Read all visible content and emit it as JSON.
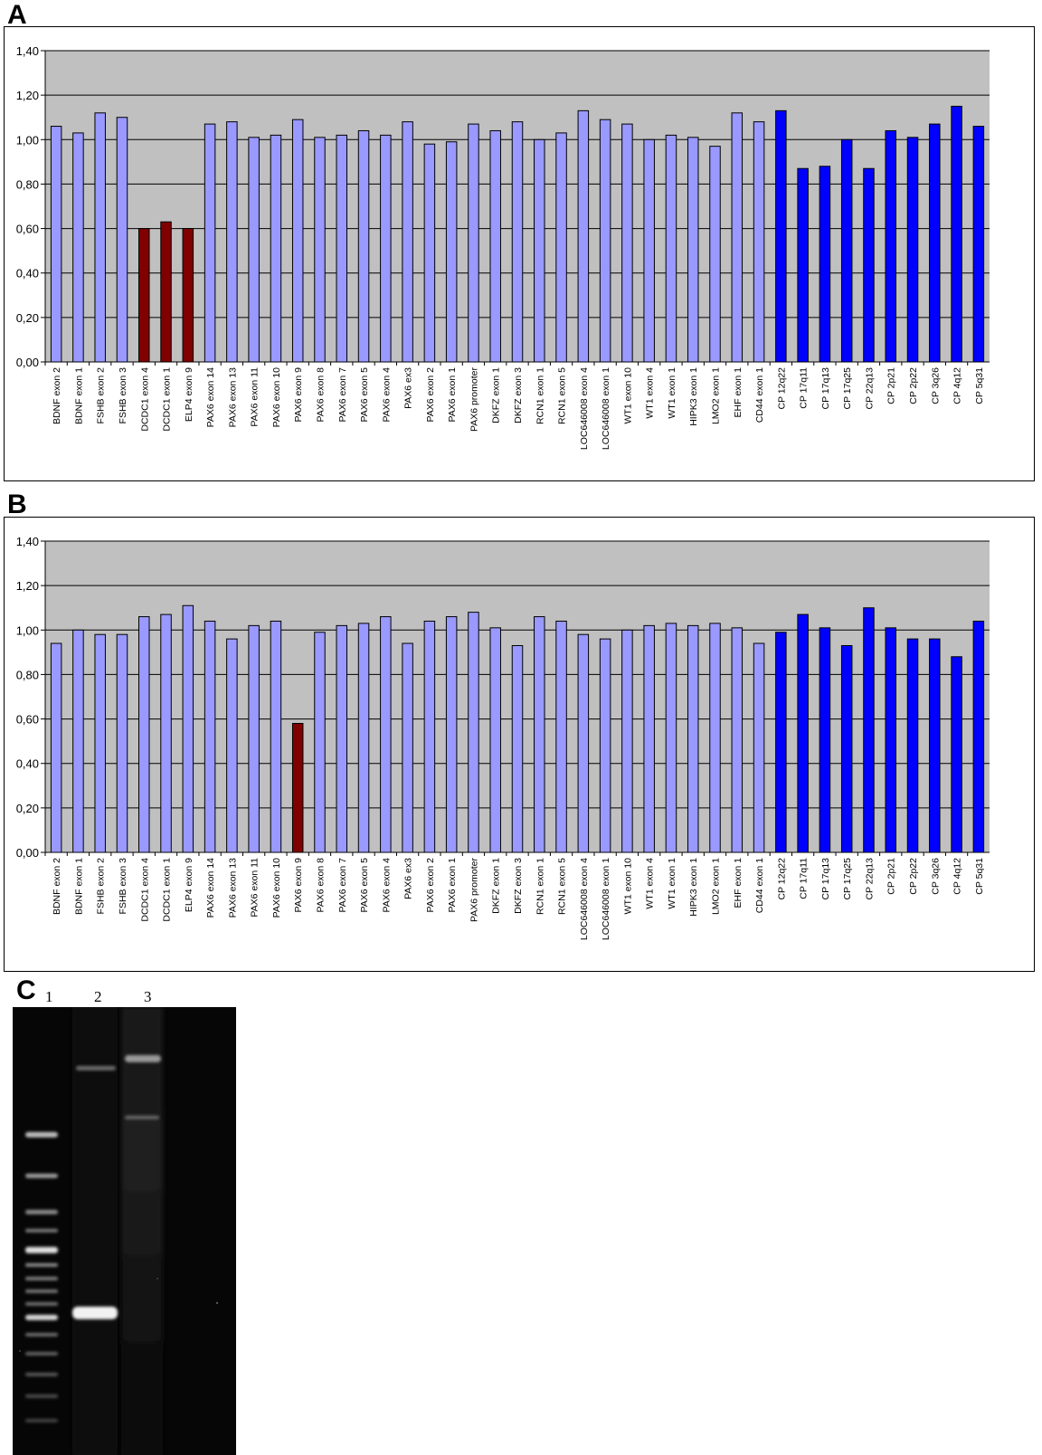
{
  "panels": {
    "a_label": "A",
    "b_label": "B",
    "c_label": "C"
  },
  "gel": {
    "lane_labels": [
      "1",
      "2",
      "3"
    ]
  },
  "colors": {
    "plot_background": "#c0c0c0",
    "normal_bar": "#9999ff",
    "deleted_bar": "#800000",
    "control_bar": "#0000ff"
  },
  "chart_data": [
    {
      "type": "bar",
      "panel": "A",
      "ylim": [
        0,
        1.4
      ],
      "y_ticks": [
        "0,00",
        "0,20",
        "0,40",
        "0,60",
        "0,80",
        "1,00",
        "1,20",
        "1,40"
      ],
      "grid": true,
      "legend": "none",
      "categories": [
        "BDNF exon 2",
        "BDNF exon 1",
        "FSHB exon 2",
        "FSHB exon 3",
        "DCDC1 exon 4",
        "DCDC1 exon 1",
        "ELP4 exon 9",
        "PAX6 exon 14",
        "PAX6 exon 13",
        "PAX6 exon 11",
        "PAX6 exon 10",
        "PAX6 exon 9",
        "PAX6 exon 8",
        "PAX6 exon 7",
        "PAX6 exon 5",
        "PAX6 exon 4",
        "PAX6 ex3",
        "PAX6 exon 2",
        "PAX6 exon 1",
        "PAX6 promoter",
        "DKFZ exon 1",
        "DKFZ exon 3",
        "RCN1 exon 1",
        "RCN1 exon 5",
        "LOC646008 exon 4",
        "LOC646008 exon 1",
        "WT1 exon 10",
        "WT1 exon 4",
        "WT1 exon 1",
        "HIPK3 exon 1",
        "LMO2 exon 1",
        "EHF exon 1",
        "CD44 exon 1",
        "CP 12q22",
        "CP 17q11",
        "CP 17q13",
        "CP 17q25",
        "CP 22q13",
        "CP 2p21",
        "CP 2p22",
        "CP 3q26",
        "CP 4q12",
        "CP 5q31"
      ],
      "values": [
        1.06,
        1.03,
        1.12,
        1.1,
        0.6,
        0.63,
        0.6,
        1.07,
        1.08,
        1.01,
        1.02,
        1.09,
        1.01,
        1.02,
        1.04,
        1.02,
        1.08,
        0.98,
        0.99,
        1.07,
        1.04,
        1.08,
        1.0,
        1.03,
        1.13,
        1.09,
        1.07,
        1.0,
        1.02,
        1.01,
        0.97,
        1.12,
        1.08,
        1.13,
        0.87,
        0.88,
        1.0,
        0.87,
        1.04,
        1.01,
        1.07,
        1.15,
        1.06
      ],
      "bar_groups": [
        "normal",
        "normal",
        "normal",
        "normal",
        "deleted",
        "deleted",
        "deleted",
        "normal",
        "normal",
        "normal",
        "normal",
        "normal",
        "normal",
        "normal",
        "normal",
        "normal",
        "normal",
        "normal",
        "normal",
        "normal",
        "normal",
        "normal",
        "normal",
        "normal",
        "normal",
        "normal",
        "normal",
        "normal",
        "normal",
        "normal",
        "normal",
        "normal",
        "normal",
        "control",
        "control",
        "control",
        "control",
        "control",
        "control",
        "control",
        "control",
        "control",
        "control"
      ]
    },
    {
      "type": "bar",
      "panel": "B",
      "ylim": [
        0,
        1.4
      ],
      "y_ticks": [
        "0,00",
        "0,20",
        "0,40",
        "0,60",
        "0,80",
        "1,00",
        "1,20",
        "1,40"
      ],
      "grid": true,
      "legend": "none",
      "categories": [
        "BDNF exon 2",
        "BDNF exon 1",
        "FSHB exon 2",
        "FSHB exon 3",
        "DCDC1 exon 4",
        "DCDC1 exon 1",
        "ELP4 exon 9",
        "PAX6 exon 14",
        "PAX6 exon 13",
        "PAX6 exon 11",
        "PAX6 exon 10",
        "PAX6 exon 9",
        "PAX6 exon 8",
        "PAX6 exon 7",
        "PAX6 exon 5",
        "PAX6 exon 4",
        "PAX6 ex3",
        "PAX6 exon 2",
        "PAX6 exon 1",
        "PAX6 promoter",
        "DKFZ exon 1",
        "DKFZ exon 3",
        "RCN1 exon 1",
        "RCN1 exon 5",
        "LOC646008 exon 4",
        "LOC646008 exon 1",
        "WT1 exon 10",
        "WT1 exon 4",
        "WT1 exon 1",
        "HIPK3 exon 1",
        "LMO2 exon 1",
        "EHF exon 1",
        "CD44 exon 1",
        "CP 12q22",
        "CP 17q11",
        "CP 17q13",
        "CP 17q25",
        "CP 22q13",
        "CP 2p21",
        "CP 2p22",
        "CP 3q26",
        "CP 4q12",
        "CP 5q31"
      ],
      "values": [
        0.94,
        1.0,
        0.98,
        0.98,
        1.06,
        1.07,
        1.11,
        1.04,
        0.96,
        1.02,
        1.04,
        0.58,
        0.99,
        1.02,
        1.03,
        1.06,
        0.94,
        1.04,
        1.06,
        1.08,
        1.01,
        0.93,
        1.06,
        1.04,
        0.98,
        0.96,
        1.0,
        1.02,
        1.03,
        1.02,
        1.03,
        1.01,
        0.94,
        0.99,
        1.07,
        1.01,
        0.93,
        1.1,
        1.01,
        0.96,
        0.96,
        0.88,
        1.04
      ],
      "bar_groups": [
        "normal",
        "normal",
        "normal",
        "normal",
        "normal",
        "normal",
        "normal",
        "normal",
        "normal",
        "normal",
        "normal",
        "deleted",
        "normal",
        "normal",
        "normal",
        "normal",
        "normal",
        "normal",
        "normal",
        "normal",
        "normal",
        "normal",
        "normal",
        "normal",
        "normal",
        "normal",
        "normal",
        "normal",
        "normal",
        "normal",
        "normal",
        "normal",
        "normal",
        "control",
        "control",
        "control",
        "control",
        "control",
        "control",
        "control",
        "control",
        "control",
        "control"
      ]
    }
  ]
}
